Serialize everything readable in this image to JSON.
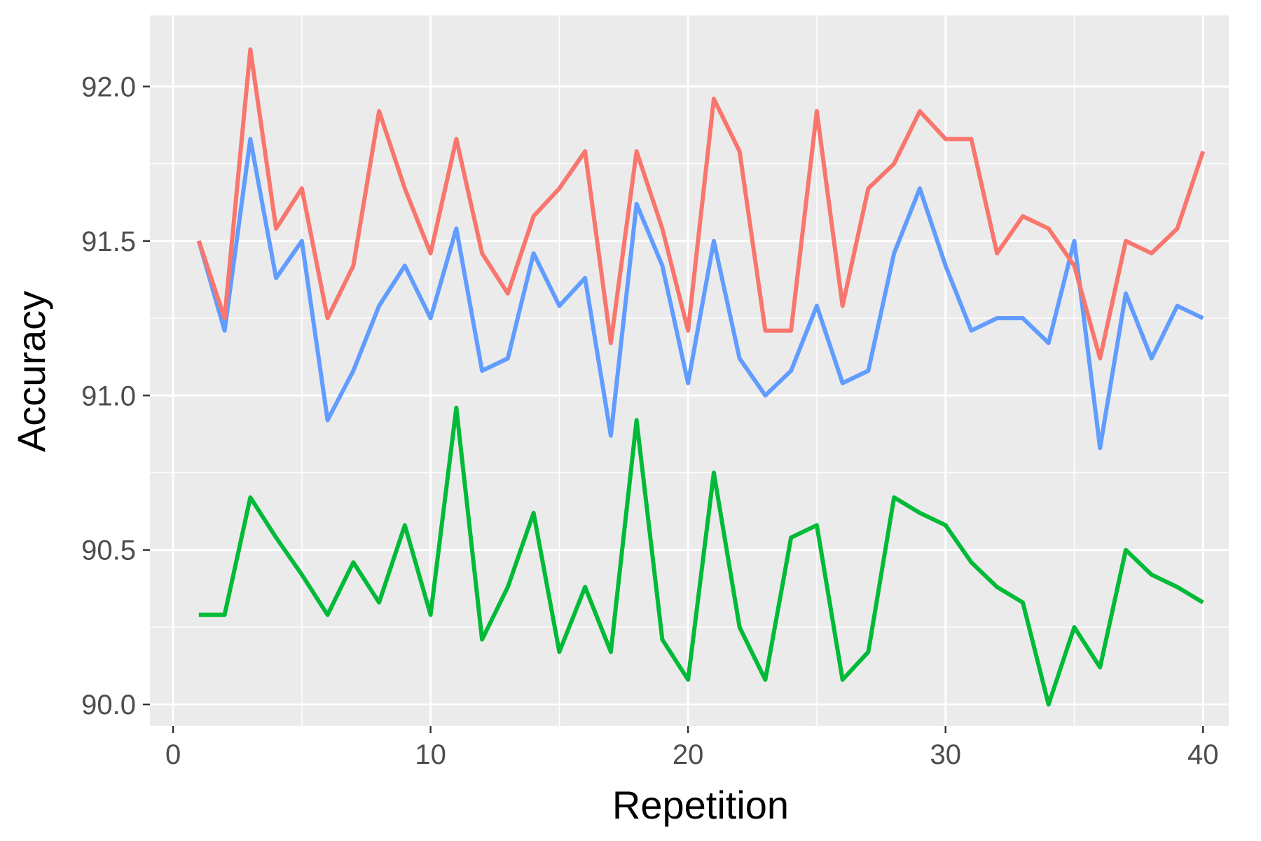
{
  "chart_data": {
    "type": "line",
    "title": "",
    "xlabel": "Repetition",
    "ylabel": "Accuracy",
    "xlim": [
      -0.9,
      41
    ],
    "ylim": [
      89.93,
      92.23
    ],
    "x_ticks": [
      0,
      10,
      20,
      30,
      40
    ],
    "x_tick_labels": [
      "0",
      "10",
      "20",
      "30",
      "40"
    ],
    "y_ticks": [
      90.0,
      90.5,
      91.0,
      91.5,
      92.0
    ],
    "y_tick_labels": [
      "90.0",
      "90.5",
      "91.0",
      "91.5",
      "92.0"
    ],
    "grid": true,
    "legend": "none",
    "panel_background": "#ebebeb",
    "grid_color": "#ffffff",
    "x": [
      1,
      2,
      3,
      4,
      5,
      6,
      7,
      8,
      9,
      10,
      11,
      12,
      13,
      14,
      15,
      16,
      17,
      18,
      19,
      20,
      21,
      22,
      23,
      24,
      25,
      26,
      27,
      28,
      29,
      30,
      31,
      32,
      33,
      34,
      35,
      36,
      37,
      38,
      39,
      40
    ],
    "series": [
      {
        "color": "#F8766D",
        "values": [
          91.5,
          91.25,
          92.12,
          91.54,
          91.67,
          91.25,
          91.42,
          91.92,
          91.67,
          91.46,
          91.83,
          91.46,
          91.33,
          91.58,
          91.67,
          91.79,
          91.17,
          91.79,
          91.54,
          91.21,
          91.96,
          91.79,
          91.21,
          91.21,
          91.92,
          91.29,
          91.67,
          91.75,
          91.92,
          91.83,
          91.83,
          91.46,
          91.58,
          91.54,
          91.42,
          91.12,
          91.5,
          91.46,
          91.54,
          91.79
        ]
      },
      {
        "color": "#619CFF",
        "values": [
          91.5,
          91.21,
          91.83,
          91.38,
          91.5,
          90.92,
          91.08,
          91.29,
          91.42,
          91.25,
          91.54,
          91.08,
          91.12,
          91.46,
          91.29,
          91.38,
          90.87,
          91.62,
          91.42,
          91.04,
          91.5,
          91.12,
          91.0,
          91.08,
          91.29,
          91.04,
          91.08,
          91.46,
          91.67,
          91.42,
          91.21,
          91.25,
          91.25,
          91.17,
          91.5,
          90.83,
          91.33,
          91.12,
          91.29,
          91.25
        ]
      },
      {
        "color": "#00BA38",
        "values": [
          90.29,
          90.29,
          90.67,
          90.54,
          90.42,
          90.29,
          90.46,
          90.33,
          90.58,
          90.29,
          90.96,
          90.21,
          90.38,
          90.62,
          90.17,
          90.38,
          90.17,
          90.92,
          90.21,
          90.08,
          90.75,
          90.25,
          90.08,
          90.54,
          90.58,
          90.08,
          90.17,
          90.67,
          90.62,
          90.58,
          90.46,
          90.38,
          90.33,
          90.0,
          90.25,
          90.12,
          90.5,
          90.42,
          90.38,
          90.33
        ]
      }
    ]
  }
}
